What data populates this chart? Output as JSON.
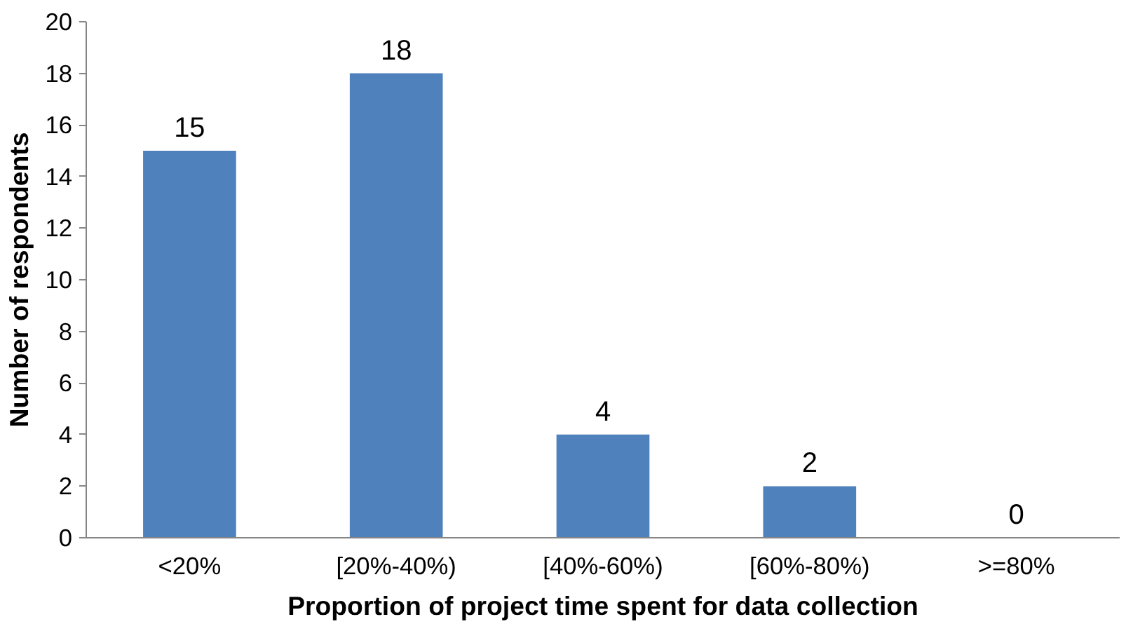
{
  "chart_data": {
    "type": "bar",
    "xlabel": "Proportion of project time spent for data collection",
    "ylabel": "Number of respondents",
    "categories": [
      "<20%",
      "[20%-40%)",
      "[40%-60%)",
      "[60%-80%)",
      ">=80%"
    ],
    "values": [
      15,
      18,
      4,
      2,
      0
    ],
    "color": "#4f81bd",
    "data_labels": true,
    "grid": false,
    "ylim": [
      0,
      20
    ],
    "yticks": [
      0,
      2,
      4,
      6,
      8,
      10,
      12,
      14,
      16,
      18,
      20
    ]
  }
}
